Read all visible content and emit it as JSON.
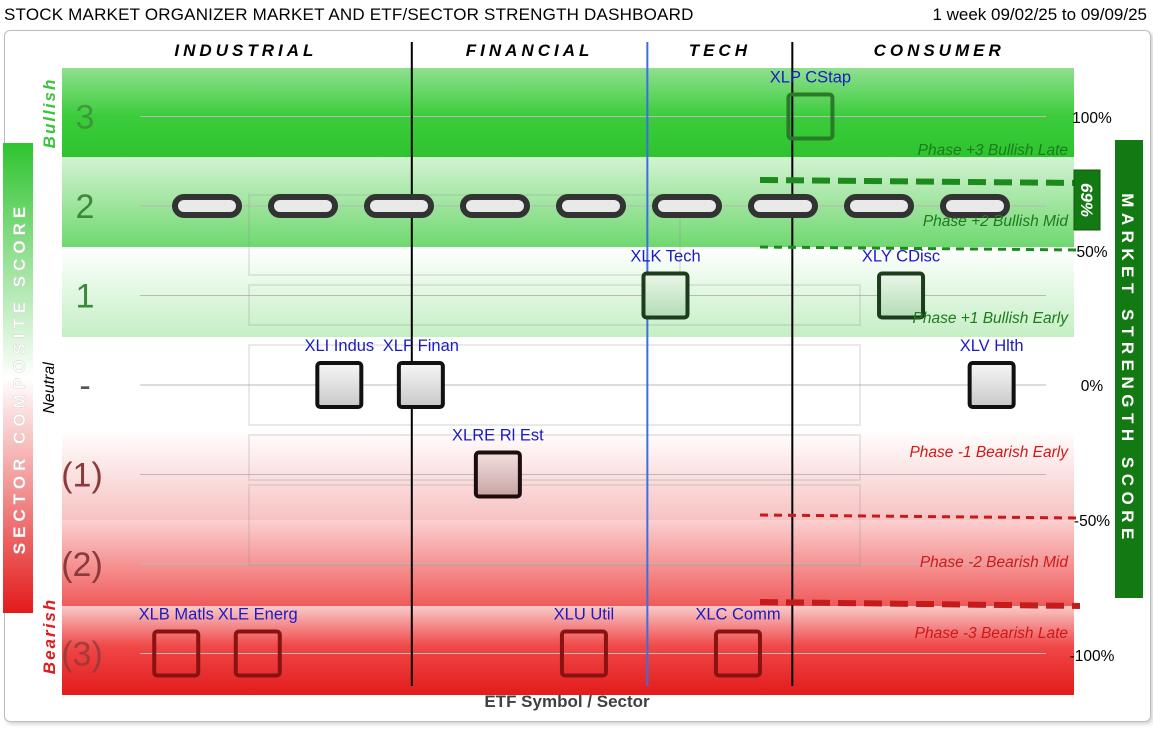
{
  "header": {
    "title": "STOCK MARKET ORGANIZER MARKET AND ETF/SECTOR STRENGTH DASHBOARD",
    "period": "1 week 09/02/25 to 09/09/25"
  },
  "colors": {
    "bullish": "#2ec42e",
    "bearish": "#e31b1b",
    "market_score": "#137a13",
    "tech_divider": "#3b6fe0",
    "symbol_text": "#1b1bc4"
  },
  "chart_data": {
    "type": "scatter",
    "xlabel": "ETF Symbol / Sector",
    "ylabel": "SECTOR COMPOSITE SCORE",
    "ylabel_right": "MARKET STRENGTH SCORE",
    "ylim": [
      -3,
      3
    ],
    "groups": [
      {
        "name": "INDUSTRIAL",
        "x_range": [
          0,
          3
        ]
      },
      {
        "name": "FINANCIAL",
        "x_range": [
          3,
          5.6
        ]
      },
      {
        "name": "TECH",
        "x_range": [
          5.6,
          7.2
        ]
      },
      {
        "name": "CONSUMER",
        "x_range": [
          7.2,
          10
        ]
      }
    ],
    "score_labels": [
      {
        "y": 3,
        "label": "3"
      },
      {
        "y": 2,
        "label": "2"
      },
      {
        "y": 1,
        "label": "1"
      },
      {
        "y": 0,
        "label": "-"
      },
      {
        "y": -1,
        "label": "(1)"
      },
      {
        "y": -2,
        "label": "(2)"
      },
      {
        "y": -3,
        "label": "(3)"
      }
    ],
    "side_labels": {
      "bullish": "Bullish",
      "neutral": "Neutral",
      "bearish": "Bearish"
    },
    "phases": [
      {
        "label": "Phase +3 Bullish Late",
        "color": "green"
      },
      {
        "label": "Phase +2 Bullish Mid",
        "color": "green"
      },
      {
        "label": "Phase +1 Bullish Early",
        "color": "green"
      },
      {
        "label": "Phase -1 Bearish Early",
        "color": "red"
      },
      {
        "label": "Phase -2 Bearish Mid",
        "color": "red"
      },
      {
        "label": "Phase -3 Bearish Late",
        "color": "red"
      }
    ],
    "percent_ticks": [
      {
        "y": 3,
        "label": "100%"
      },
      {
        "y": 1.5,
        "label": "50%"
      },
      {
        "y": 0,
        "label": "0%"
      },
      {
        "y": -1.5,
        "label": "-50%"
      },
      {
        "y": -3,
        "label": "-100%"
      }
    ],
    "market_strength": {
      "value_percent": 69,
      "label": "69%",
      "score": 2
    },
    "etfs": [
      {
        "symbol": "XLB Matls",
        "x": 0.4,
        "score": -3
      },
      {
        "symbol": "XLE Energ",
        "x": 1.3,
        "score": -3
      },
      {
        "symbol": "XLI Indus",
        "x": 2.2,
        "score": 0
      },
      {
        "symbol": "XLF Finan",
        "x": 3.1,
        "score": 0
      },
      {
        "symbol": "XLRE Rl Est",
        "x": 3.95,
        "score": -1
      },
      {
        "symbol": "XLU Util",
        "x": 4.9,
        "score": -3
      },
      {
        "symbol": "XLK Tech",
        "x": 5.8,
        "score": 1
      },
      {
        "symbol": "XLC Comm",
        "x": 6.6,
        "score": -3
      },
      {
        "symbol": "XLP CStap",
        "x": 7.4,
        "score": 3
      },
      {
        "symbol": "XLY CDisc",
        "x": 8.4,
        "score": 1
      },
      {
        "symbol": "XLV Hlth",
        "x": 9.4,
        "score": 0
      }
    ]
  }
}
